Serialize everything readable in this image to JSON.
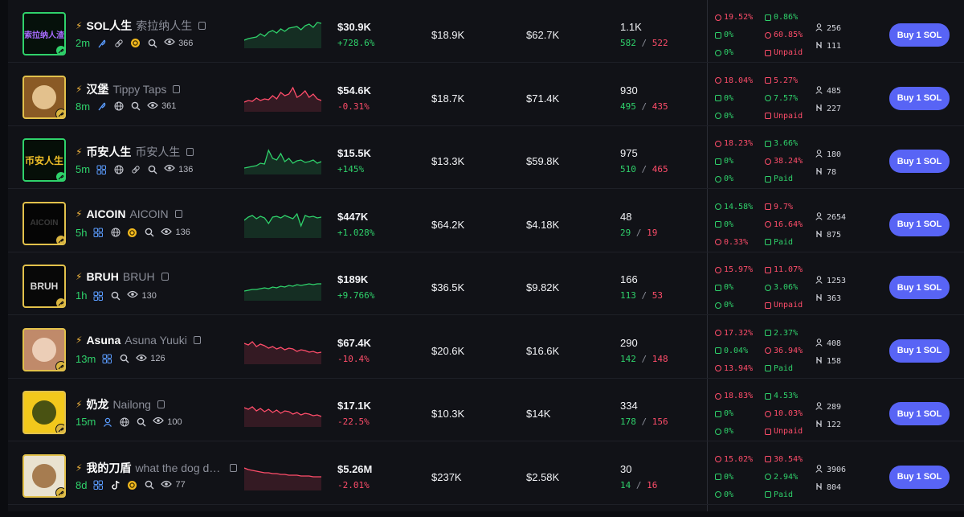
{
  "colors": {
    "green": "#2fd26b",
    "red": "#ff4d6a",
    "button": "#5864f5"
  },
  "button_label": "Buy 1 SOL",
  "rows": [
    {
      "avatar_text": "索拉纳人渣",
      "avatar_bg": "#06110b",
      "avatar_fg": "#a86cff",
      "avatar_border": "green",
      "symbol": "SOL人生",
      "name": "索拉纳人生",
      "age": "2m",
      "icons": [
        "feather-icon",
        "link-icon",
        "coin-icon",
        "search-icon"
      ],
      "views": "366",
      "spark_color": "#2fd26b",
      "spark": [
        30,
        28,
        27,
        26,
        22,
        25,
        20,
        18,
        21,
        16,
        19,
        15,
        14,
        13,
        17,
        12,
        10,
        14,
        8,
        9
      ],
      "mc": "$30.9K",
      "change": "+728.6%",
      "change_dir": "pos",
      "liq": "$18.9K",
      "vol": "$62.7K",
      "txns": "1.1K",
      "buys": "582",
      "sells": "522",
      "top10": "19.52%",
      "top10_dir": "neg",
      "dev": "0%",
      "snipers": "0%",
      "insiders": "0.86%",
      "insiders_dir": "pos",
      "bundles": "60.85%",
      "bundles_dir": "neg",
      "paid": "Unpaid",
      "paid_dir": "neg",
      "holders": "256",
      "pro": "111"
    },
    {
      "avatar_text": "",
      "avatar_bg": "#8a5a25",
      "avatar_fg": "#f2d3a0",
      "avatar_border": "gold",
      "symbol": "汉堡",
      "name": "Tippy Taps",
      "age": "8m",
      "icons": [
        "feather-icon",
        "globe-icon",
        "search-icon"
      ],
      "views": "361",
      "spark_color": "#ff4d6a",
      "spark": [
        28,
        26,
        27,
        23,
        26,
        24,
        25,
        20,
        24,
        16,
        20,
        18,
        10,
        22,
        19,
        14,
        22,
        18,
        24,
        26
      ],
      "mc": "$54.6K",
      "change": "-0.31%",
      "change_dir": "neg",
      "liq": "$18.7K",
      "vol": "$71.4K",
      "txns": "930",
      "buys": "495",
      "sells": "435",
      "top10": "18.04%",
      "top10_dir": "neg",
      "dev": "0%",
      "snipers": "0%",
      "insiders": "5.27%",
      "insiders_dir": "neg",
      "bundles": "7.57%",
      "bundles_dir": "pos",
      "paid": "Unpaid",
      "paid_dir": "neg",
      "holders": "485",
      "pro": "227"
    },
    {
      "avatar_text": "币安人生",
      "avatar_bg": "#060f08",
      "avatar_fg": "#f0c028",
      "avatar_border": "green",
      "symbol": "币安人生",
      "name": "币安人生",
      "age": "5m",
      "icons": [
        "users-icon",
        "globe-icon",
        "link-icon",
        "search-icon"
      ],
      "views": "136",
      "spark_color": "#2fd26b",
      "spark": [
        32,
        31,
        30,
        29,
        26,
        27,
        10,
        20,
        22,
        14,
        24,
        20,
        26,
        23,
        22,
        25,
        24,
        22,
        26,
        24
      ],
      "mc": "$15.5K",
      "change": "+145%",
      "change_dir": "pos",
      "liq": "$13.3K",
      "vol": "$59.8K",
      "txns": "975",
      "buys": "510",
      "sells": "465",
      "top10": "18.23%",
      "top10_dir": "neg",
      "dev": "0%",
      "snipers": "0%",
      "insiders": "3.66%",
      "insiders_dir": "pos",
      "bundles": "38.24%",
      "bundles_dir": "neg",
      "paid": "Paid",
      "paid_dir": "pos",
      "holders": "180",
      "pro": "78"
    },
    {
      "avatar_text": "AICOIN",
      "avatar_bg": "#050505",
      "avatar_fg": "#3a3a3a",
      "avatar_border": "gold",
      "symbol": "AICOIN",
      "name": "AICOIN",
      "age": "5h",
      "icons": [
        "users-icon",
        "globe-icon",
        "coin-icon",
        "search-icon"
      ],
      "views": "136",
      "spark_color": "#2fd26b",
      "spark": [
        18,
        14,
        12,
        16,
        13,
        15,
        22,
        14,
        13,
        15,
        12,
        14,
        16,
        10,
        25,
        12,
        14,
        13,
        15,
        14
      ],
      "mc": "$447K",
      "change": "+1.028%",
      "change_dir": "pos",
      "liq": "$64.2K",
      "vol": "$4.18K",
      "txns": "48",
      "buys": "29",
      "sells": "19",
      "top10": "14.58%",
      "top10_dir": "pos",
      "dev": "0%",
      "snipers": "0.33%",
      "insiders": "9.7%",
      "insiders_dir": "neg",
      "bundles": "16.64%",
      "bundles_dir": "neg",
      "paid": "Paid",
      "paid_dir": "pos",
      "holders": "2654",
      "pro": "875"
    },
    {
      "avatar_text": "BRUH",
      "avatar_bg": "#080808",
      "avatar_fg": "#d8d8d8",
      "avatar_border": "gold",
      "symbol": "BRUH",
      "name": "BRUH",
      "age": "1h",
      "icons": [
        "users-icon",
        "search-icon"
      ],
      "views": "130",
      "spark_color": "#2fd26b",
      "spark": [
        28,
        27,
        26,
        26,
        25,
        24,
        25,
        23,
        24,
        22,
        23,
        21,
        22,
        20,
        21,
        20,
        19,
        20,
        19,
        19
      ],
      "mc": "$189K",
      "change": "+9.766%",
      "change_dir": "pos",
      "liq": "$36.5K",
      "vol": "$9.82K",
      "txns": "166",
      "buys": "113",
      "sells": "53",
      "top10": "15.97%",
      "top10_dir": "neg",
      "dev": "0%",
      "snipers": "0%",
      "insiders": "11.07%",
      "insiders_dir": "neg",
      "bundles": "3.06%",
      "bundles_dir": "pos",
      "paid": "Unpaid",
      "paid_dir": "neg",
      "holders": "1253",
      "pro": "363"
    },
    {
      "avatar_text": "",
      "avatar_bg": "#c08a6a",
      "avatar_fg": "#f3d9c4",
      "avatar_border": "gold",
      "symbol": "Asuna",
      "name": "Asuna Yuuki",
      "age": "13m",
      "icons": [
        "users-icon",
        "search-icon"
      ],
      "views": "126",
      "spark_color": "#ff4d6a",
      "spark": [
        14,
        16,
        12,
        18,
        15,
        17,
        20,
        18,
        21,
        19,
        22,
        20,
        21,
        24,
        22,
        23,
        25,
        24,
        26,
        25
      ],
      "mc": "$67.4K",
      "change": "-10.4%",
      "change_dir": "neg",
      "liq": "$20.6K",
      "vol": "$16.6K",
      "txns": "290",
      "buys": "142",
      "sells": "148",
      "top10": "17.32%",
      "top10_dir": "neg",
      "dev": "0.04%",
      "snipers": "13.94%",
      "insiders": "2.37%",
      "insiders_dir": "pos",
      "bundles": "36.94%",
      "bundles_dir": "neg",
      "paid": "Paid",
      "paid_dir": "pos",
      "holders": "408",
      "pro": "158"
    },
    {
      "avatar_text": "",
      "avatar_bg": "#f2c81c",
      "avatar_fg": "#2b3d10",
      "avatar_border": "gold",
      "symbol": "奶龙",
      "name": "Nailong",
      "age": "15m",
      "icons": [
        "user-icon",
        "globe-icon",
        "search-icon"
      ],
      "views": "100",
      "spark_color": "#ff4d6a",
      "spark": [
        16,
        18,
        15,
        20,
        17,
        21,
        18,
        22,
        19,
        23,
        20,
        21,
        24,
        22,
        25,
        23,
        24,
        26,
        25,
        27
      ],
      "mc": "$17.1K",
      "change": "-22.5%",
      "change_dir": "neg",
      "liq": "$10.3K",
      "vol": "$14K",
      "txns": "334",
      "buys": "178",
      "sells": "156",
      "top10": "18.83%",
      "top10_dir": "neg",
      "dev": "0%",
      "snipers": "0%",
      "insiders": "4.53%",
      "insiders_dir": "pos",
      "bundles": "10.03%",
      "bundles_dir": "neg",
      "paid": "Unpaid",
      "paid_dir": "neg",
      "holders": "289",
      "pro": "122"
    },
    {
      "avatar_text": "",
      "avatar_bg": "#e9e2d0",
      "avatar_fg": "#9a6a3a",
      "avatar_border": "gold",
      "symbol": "我的刀盾",
      "name": "what the dog doin",
      "age": "8d",
      "icons": [
        "users-icon",
        "tiktok-icon",
        "coin-icon",
        "search-icon"
      ],
      "views": "77",
      "spark_color": "#ff4d6a",
      "spark": [
        12,
        14,
        15,
        16,
        17,
        18,
        18,
        19,
        19,
        20,
        20,
        21,
        21,
        21,
        22,
        22,
        22,
        23,
        23,
        23
      ],
      "mc": "$5.26M",
      "change": "-2.01%",
      "change_dir": "neg",
      "liq": "$237K",
      "vol": "$2.58K",
      "txns": "30",
      "buys": "14",
      "sells": "16",
      "top10": "15.02%",
      "top10_dir": "neg",
      "dev": "0%",
      "snipers": "0%",
      "insiders": "30.54%",
      "insiders_dir": "neg",
      "bundles": "2.94%",
      "bundles_dir": "pos",
      "paid": "Paid",
      "paid_dir": "pos",
      "holders": "3906",
      "pro": "804"
    }
  ]
}
